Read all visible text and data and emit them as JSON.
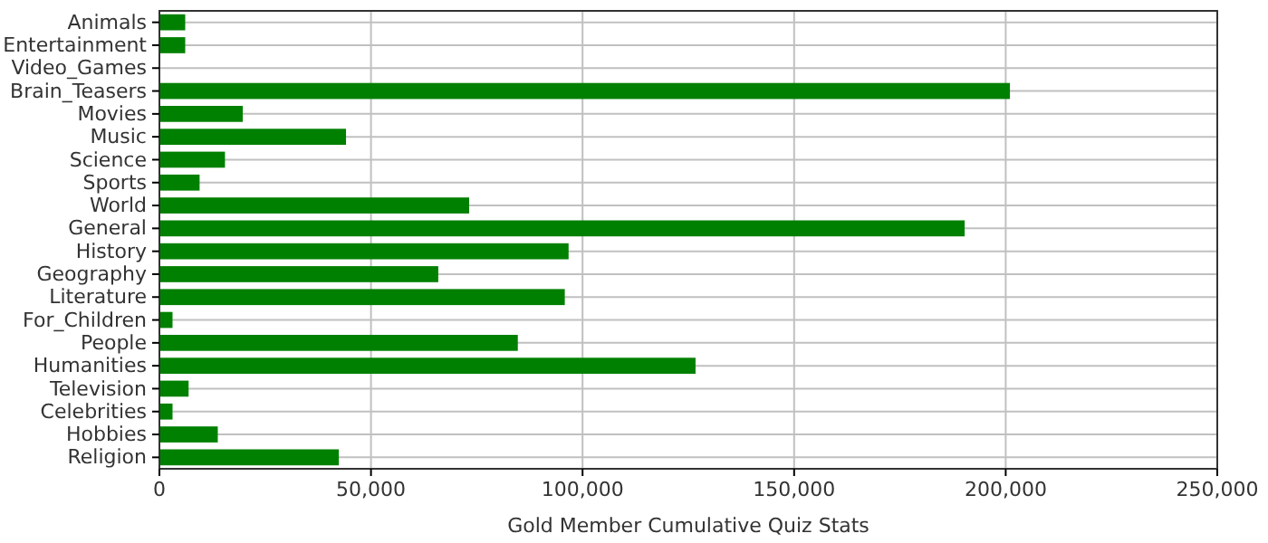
{
  "chart_data": {
    "type": "bar",
    "orientation": "horizontal",
    "xlabel": "Gold Member Cumulative Quiz Stats",
    "categories": [
      "Animals",
      "Entertainment",
      "Video_Games",
      "Brain_Teasers",
      "Movies",
      "Music",
      "Science",
      "Sports",
      "World",
      "General",
      "History",
      "Geography",
      "Literature",
      "For_Children",
      "People",
      "Humanities",
      "Television",
      "Celebrities",
      "Hobbies",
      "Religion"
    ],
    "values": [
      6100,
      6100,
      0,
      201000,
      19700,
      44100,
      15500,
      9500,
      73200,
      190300,
      96700,
      65900,
      95800,
      3100,
      84700,
      126700,
      6900,
      3100,
      13800,
      42400
    ],
    "color": "#008000",
    "xlim": [
      0,
      250000
    ],
    "xticks": [
      0,
      {
        "value": 50000,
        "label": "50,000"
      },
      {
        "value": 100000,
        "label": "100,000"
      },
      {
        "value": 150000,
        "label": "150,000"
      },
      {
        "value": 200000,
        "label": "200,000"
      },
      {
        "value": 250000,
        "label": "250,000"
      }
    ],
    "grid": true
  }
}
